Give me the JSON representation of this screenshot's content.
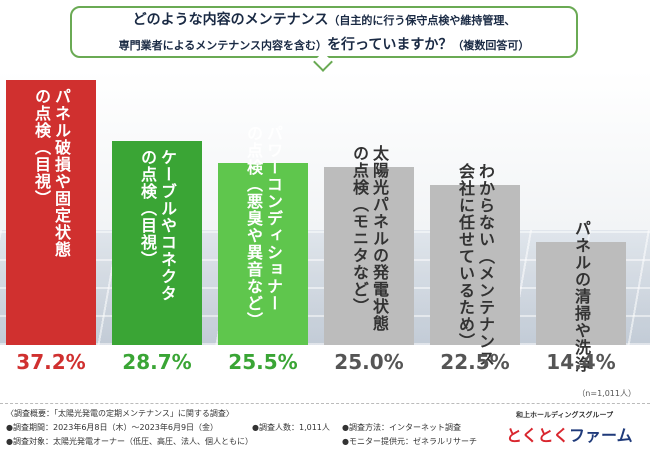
{
  "title": {
    "line1_main": "どのような内容のメンテナンス",
    "line1_note": "（自主的に行う保守点検や維持管理、",
    "line2_note": "専門業者によるメンテナンス内容を含む）",
    "line2_main": "を行っていますか？",
    "line2_tail": "（複数回答可）"
  },
  "note_n": "（n=1,011人）",
  "colors": {
    "red": "#d0302f",
    "green_dark": "#3aa535",
    "green_light": "#5fc64d",
    "gray": "#bcbcbc"
  },
  "chart_data": {
    "type": "bar",
    "categories": [
      "パネル破損や固定状態の点検（目視）",
      "ケーブルやコネクタの点検（目視）",
      "パワーコンディショナーの点検（悪臭や異音など）",
      "太陽光パネルの発電状態の点検（モニタなど）",
      "わからない（メンテナンス会社に任せているため）",
      "パネルの清掃や洗浄"
    ],
    "label_lines": [
      [
        "パネル破損や固定状態",
        "の点検（目視）"
      ],
      [
        "ケーブルやコネクタ",
        "の点検（目視）"
      ],
      [
        "パワーコンディショナー",
        "の点検（悪臭や異音など）"
      ],
      [
        "太陽光パネルの発電状態",
        "の点検（モニタなど）"
      ],
      [
        "わからない（メンテナンス",
        "会社に任せているため）"
      ],
      [
        "パネルの清掃や洗浄"
      ]
    ],
    "values": [
      37.2,
      28.7,
      25.5,
      25.0,
      22.5,
      14.4
    ],
    "value_labels": [
      "37.2%",
      "28.7%",
      "25.5%",
      "25.0%",
      "22.5%",
      "14.4%"
    ],
    "bar_colors": [
      "red",
      "green_dark",
      "green_light",
      "gray",
      "gray",
      "gray"
    ],
    "ylim": [
      0,
      37.2
    ],
    "grid": false
  },
  "footer": {
    "survey_title": "〈調査概要：「太陽光発電の定期メンテナンス」に関する調査〉",
    "period": "●調査期間：2023年6月8日（木）～2023年6月9日（金）",
    "target": "●調査対象：太陽光発電オーナー（低圧、高圧、法人、個人ともに）",
    "count": "●調査人数：1,011人",
    "method": "●調査方法：インターネット調査",
    "provider": "●モニター提供元：ゼネラルリサーチ"
  },
  "logo": {
    "group": "和上ホールディングスグループ",
    "name_a": "とくとく",
    "name_b": "ファーム"
  }
}
